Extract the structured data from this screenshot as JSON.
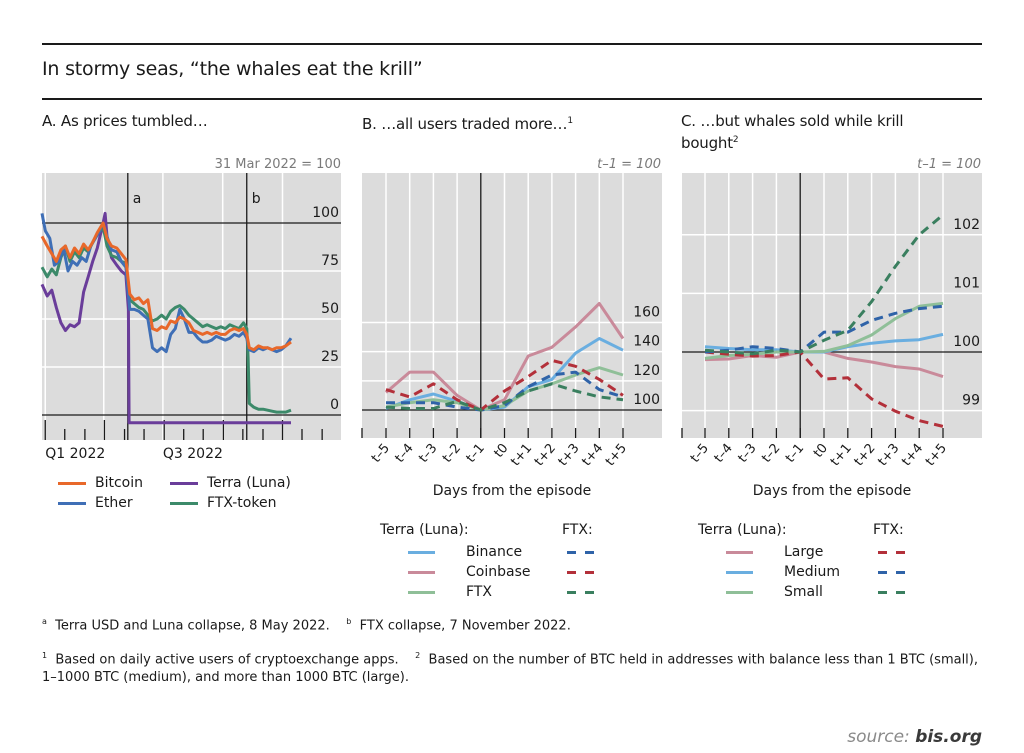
{
  "header": {
    "title": "In stormy seas, “the whales eat the krill”"
  },
  "panels": {
    "a": {
      "title": "A. As prices tumbled…",
      "unit": "31 Mar 2022 = 100"
    },
    "b": {
      "title": "B. …all users traded more…",
      "title_sup": "1",
      "unit": "t–1 = 100",
      "xlabel": "Days from the episode"
    },
    "c": {
      "title_line1": "C. …but whales sold while krill",
      "title_line2": "bought",
      "title_sup": "2",
      "unit": "t–1 = 100",
      "xlabel": "Days from the episode"
    }
  },
  "legend_a": [
    {
      "label": "Bitcoin",
      "color": "#e8682a"
    },
    {
      "label": "Ether",
      "color": "#3f6fb6"
    },
    {
      "label": "Terra (Luna)",
      "color": "#6a3d9a"
    },
    {
      "label": "FTX-token",
      "color": "#3c8a6a"
    }
  ],
  "legend_b": {
    "solid_header": "Terra (Luna):",
    "dashed_header": "FTX:",
    "items": [
      {
        "label": "Binance",
        "solid": "#6aaee0",
        "dashed": "#2f63a8"
      },
      {
        "label": "Coinbase",
        "solid": "#c98a9a",
        "dashed": "#b3303a"
      },
      {
        "label": "FTX",
        "solid": "#8fbf98",
        "dashed": "#3a7f5f"
      }
    ]
  },
  "legend_c": {
    "solid_header": "Terra (Luna):",
    "dashed_header": "FTX:",
    "items": [
      {
        "label": "Large",
        "solid": "#c98a9a",
        "dashed": "#b3303a"
      },
      {
        "label": "Medium",
        "solid": "#6aaee0",
        "dashed": "#2f63a8"
      },
      {
        "label": "Small",
        "solid": "#8fbf98",
        "dashed": "#3a7f5f"
      }
    ]
  },
  "footnotes": {
    "a_mark": "a",
    "a_text": "Terra USD and Luna collapse, 8 May 2022.",
    "b_mark": "b",
    "b_text": "FTX collapse, 7 November 2022.",
    "n1_mark": "1",
    "n1_text": "Based on daily active users of cryptoexchange apps.",
    "n2_mark": "2",
    "n2_text": "Based on the number of BTC held in addresses with balance less than 1 BTC (small), 1–1000 BTC (medium), and more than 1000 BTC (large)."
  },
  "source": {
    "prefix": "source:",
    "site": "bis.org"
  },
  "chart_data": [
    {
      "id": "A",
      "type": "line",
      "title": "A. As prices tumbled…",
      "ylabel": "31 Mar 2022 = 100",
      "x_unit": "days since 1 Jan 2022",
      "xlim": [
        -5,
        400
      ],
      "ylim": [
        -7,
        125
      ],
      "yticks": [
        0,
        25,
        50,
        75,
        100
      ],
      "xtick_labels": [
        {
          "day": 0,
          "label": "Q1 2022"
        },
        {
          "day": 181,
          "label": "Q3 2022"
        }
      ],
      "events": [
        {
          "day": 127,
          "label": "a"
        },
        {
          "day": 310,
          "label": "b"
        }
      ],
      "grid": true,
      "legend": "bottom",
      "series": [
        {
          "name": "Bitcoin",
          "color": "#e8682a",
          "x": [
            -5,
            3,
            10,
            17,
            24,
            31,
            38,
            45,
            52,
            59,
            66,
            73,
            80,
            89,
            95,
            102,
            110,
            117,
            124,
            130,
            137,
            144,
            151,
            158,
            165,
            172,
            179,
            186,
            193,
            200,
            207,
            214,
            221,
            228,
            235,
            242,
            249,
            256,
            263,
            270,
            277,
            284,
            291,
            298,
            305,
            310,
            314,
            321,
            328,
            335,
            342,
            349,
            356,
            363,
            370,
            378
          ],
          "y": [
            93,
            88,
            84,
            80,
            86,
            88,
            82,
            87,
            84,
            89,
            86,
            90,
            95,
            100,
            92,
            88,
            87,
            84,
            81,
            63,
            60,
            61,
            58,
            60,
            45,
            44,
            46,
            45,
            49,
            48,
            51,
            50,
            48,
            44,
            43,
            42,
            43,
            42,
            43,
            42,
            42,
            44,
            45,
            44,
            45,
            42,
            35,
            34,
            36,
            35,
            35,
            34,
            35,
            35,
            36,
            38
          ]
        },
        {
          "name": "Ether",
          "color": "#3f6fb6",
          "x": [
            -5,
            0,
            7,
            14,
            21,
            28,
            35,
            42,
            49,
            56,
            63,
            70,
            77,
            84,
            89,
            95,
            102,
            110,
            117,
            124,
            130,
            137,
            144,
            151,
            158,
            165,
            172,
            179,
            186,
            193,
            200,
            207,
            214,
            221,
            228,
            235,
            242,
            249,
            256,
            263,
            270,
            277,
            284,
            291,
            298,
            305,
            310,
            314,
            321,
            328,
            335,
            342,
            349,
            356,
            363,
            370,
            378
          ],
          "y": [
            105,
            96,
            92,
            78,
            80,
            87,
            75,
            80,
            78,
            82,
            80,
            88,
            92,
            96,
            100,
            93,
            86,
            85,
            80,
            77,
            55,
            55,
            54,
            52,
            50,
            35,
            33,
            35,
            33,
            42,
            45,
            55,
            50,
            43,
            43,
            40,
            38,
            38,
            39,
            41,
            40,
            39,
            40,
            42,
            41,
            43,
            40,
            34,
            33,
            35,
            34,
            35,
            34,
            33,
            34,
            36,
            40
          ]
        },
        {
          "name": "Terra (Luna)",
          "color": "#6a3d9a",
          "x": [
            -5,
            3,
            10,
            17,
            24,
            31,
            38,
            45,
            52,
            59,
            66,
            73,
            80,
            89,
            92,
            95,
            102,
            110,
            117,
            124,
            128,
            129,
            378
          ],
          "y": [
            68,
            62,
            65,
            56,
            48,
            44,
            47,
            46,
            48,
            64,
            72,
            80,
            87,
            100,
            105,
            93,
            82,
            78,
            75,
            73,
            55,
            -4,
            -4
          ]
        },
        {
          "name": "FTX-token",
          "color": "#3c8a6a",
          "x": [
            -5,
            3,
            10,
            17,
            24,
            31,
            38,
            45,
            52,
            59,
            66,
            73,
            80,
            89,
            95,
            102,
            110,
            117,
            124,
            130,
            137,
            144,
            151,
            158,
            165,
            172,
            179,
            186,
            193,
            200,
            207,
            214,
            221,
            228,
            235,
            242,
            249,
            256,
            263,
            270,
            277,
            284,
            291,
            298,
            305,
            310,
            312,
            314,
            321,
            328,
            335,
            342,
            349,
            356,
            363,
            370,
            378
          ],
          "y": [
            77,
            72,
            76,
            73,
            82,
            88,
            80,
            85,
            82,
            87,
            85,
            90,
            94,
            98,
            88,
            83,
            82,
            80,
            79,
            60,
            58,
            56,
            55,
            52,
            49,
            50,
            52,
            50,
            54,
            56,
            57,
            55,
            52,
            50,
            48,
            46,
            47,
            46,
            45,
            46,
            45,
            47,
            46,
            45,
            48,
            45,
            30,
            6,
            4,
            3,
            3,
            2.5,
            2,
            1.5,
            1.5,
            1.5,
            2.5
          ]
        }
      ]
    },
    {
      "id": "B",
      "type": "line",
      "title": "B. …all users traded more…",
      "ylabel": "t–1 = 100",
      "xlabel": "Days from the episode",
      "categories": [
        "t–5",
        "t–4",
        "t–3",
        "t–2",
        "t–1",
        "t0",
        "t+1",
        "t+2",
        "t+3",
        "t+4",
        "t+5"
      ],
      "ylim": [
        85,
        178
      ],
      "yticks": [
        100,
        120,
        140,
        160
      ],
      "grid": true,
      "legend": "bottom",
      "series": [
        {
          "name": "Terra (Luna): Binance",
          "style": "solid",
          "color": "#6aaee0",
          "values": [
            101,
            107,
            111,
            106,
            100,
            102,
            116,
            121,
            139,
            149,
            141
          ]
        },
        {
          "name": "Terra (Luna): Coinbase",
          "style": "solid",
          "color": "#c98a9a",
          "values": [
            112,
            126,
            126,
            110,
            100,
            107,
            137,
            143,
            157,
            173,
            149
          ]
        },
        {
          "name": "Terra (Luna): FTX",
          "style": "solid",
          "color": "#8fbf98",
          "values": [
            102,
            105,
            107,
            105,
            100,
            103,
            113,
            118,
            124,
            129,
            124
          ]
        },
        {
          "name": "FTX: Binance",
          "style": "dashed",
          "color": "#2f63a8",
          "values": [
            105,
            105,
            105,
            102,
            100,
            103,
            116,
            124,
            126,
            114,
            109
          ]
        },
        {
          "name": "FTX: Coinbase",
          "style": "dashed",
          "color": "#b3303a",
          "values": [
            114,
            109,
            118,
            107,
            100,
            113,
            123,
            134,
            130,
            121,
            110
          ]
        },
        {
          "name": "FTX: FTX",
          "style": "dashed",
          "color": "#3a7f5f",
          "values": [
            102,
            101,
            101,
            106,
            100,
            105,
            113,
            118,
            113,
            109,
            107
          ]
        }
      ]
    },
    {
      "id": "C",
      "type": "line",
      "title": "C. …but whales sold while krill bought",
      "ylabel": "t–1 = 100",
      "xlabel": "Days from the episode",
      "categories": [
        "t–5",
        "t–4",
        "t–3",
        "t–2",
        "t–1",
        "t0",
        "t+1",
        "t+2",
        "t+3",
        "t+4",
        "t+5"
      ],
      "ylim": [
        98.5,
        102.95
      ],
      "yticks": [
        99,
        100,
        101,
        102
      ],
      "grid": true,
      "legend": "bottom",
      "series": [
        {
          "name": "Terra (Luna): Large",
          "style": "solid",
          "color": "#c98a9a",
          "values": [
            99.87,
            99.88,
            99.94,
            99.91,
            100,
            100,
            99.89,
            99.83,
            99.75,
            99.71,
            99.58
          ]
        },
        {
          "name": "Terra (Luna): Medium",
          "style": "solid",
          "color": "#6aaee0",
          "values": [
            100.09,
            100.06,
            100.04,
            100.04,
            100,
            100,
            100.09,
            100.15,
            100.19,
            100.21,
            100.3
          ]
        },
        {
          "name": "Terra (Luna): Small",
          "style": "solid",
          "color": "#8fbf98",
          "values": [
            99.89,
            99.94,
            99.96,
            100,
            100,
            100.01,
            100.11,
            100.29,
            100.57,
            100.78,
            100.83
          ]
        },
        {
          "name": "FTX: Large",
          "style": "dashed",
          "color": "#b3303a",
          "values": [
            100,
            99.96,
            99.93,
            99.94,
            100,
            99.54,
            99.56,
            99.2,
            98.99,
            98.83,
            98.73
          ]
        },
        {
          "name": "FTX: Medium",
          "style": "dashed",
          "color": "#2f63a8",
          "values": [
            100,
            100.03,
            100.09,
            100.06,
            100,
            100.34,
            100.34,
            100.54,
            100.66,
            100.74,
            100.78
          ]
        },
        {
          "name": "FTX: Small",
          "style": "dashed",
          "color": "#3a7f5f",
          "values": [
            100.03,
            100,
            99.97,
            100.03,
            100,
            100.2,
            100.37,
            100.86,
            101.46,
            102.0,
            102.34
          ]
        }
      ]
    }
  ]
}
